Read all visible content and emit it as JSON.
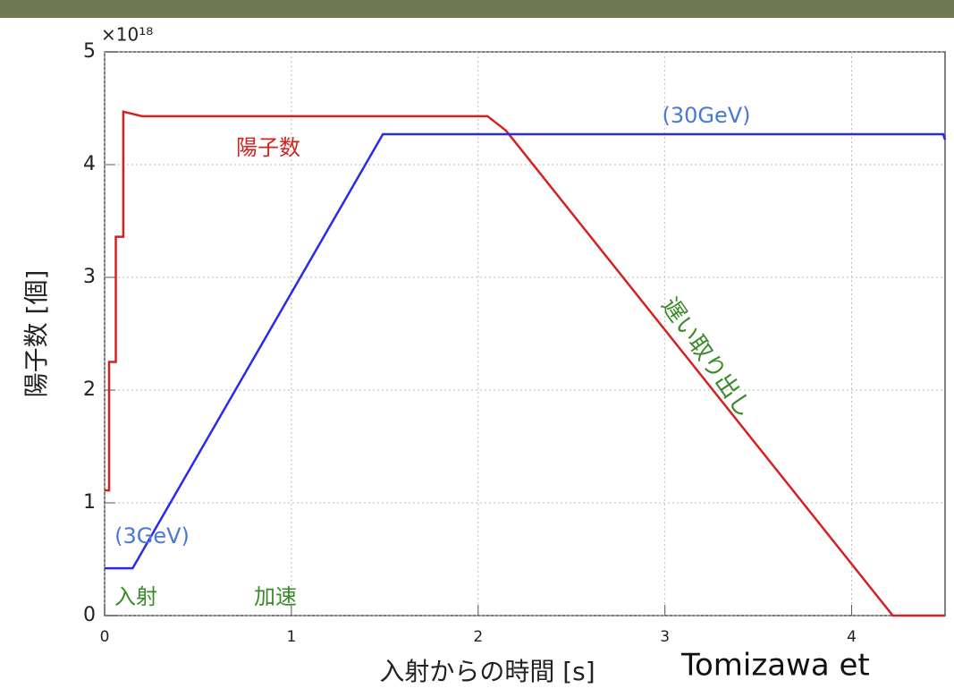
{
  "chart_data": {
    "type": "line",
    "x_label": "入射からの時間 [s]",
    "y_label": "陽子数 [個]",
    "y_multiplier": "×10¹⁸",
    "xlim": [
      0,
      4.5
    ],
    "xticks": [
      0,
      1,
      2,
      3,
      4
    ],
    "ylim": [
      0,
      5
    ],
    "yticks": [
      0,
      1,
      2,
      3,
      4,
      5
    ],
    "grid": true,
    "series": [
      {
        "name": "陽子数",
        "color": "#d42222",
        "x": [
          0,
          0.024,
          0.024,
          0.06,
          0.06,
          0.1,
          0.1,
          0.2,
          2.05,
          2.15,
          4.22,
          4.5
        ],
        "values": [
          1.11,
          1.11,
          2.25,
          2.25,
          3.36,
          3.36,
          4.47,
          4.43,
          4.43,
          4.3,
          0,
          0
        ]
      },
      {
        "color": "#2a2ae8",
        "x": [
          0,
          0.15,
          1.49,
          4.49,
          4.5
        ],
        "values": [
          0.42,
          0.42,
          4.27,
          4.27,
          4.22
        ]
      }
    ],
    "annotations": [
      {
        "text": "(30GeV)",
        "color": "#4a78d8"
      },
      {
        "text": "(3GeV)",
        "color": "#4a78d8"
      },
      {
        "text": "入射",
        "color": "#3a8a2a"
      },
      {
        "text": "加速",
        "color": "#3a8a2a"
      },
      {
        "text": "遅い取り出し",
        "color": "#3a8a2a"
      }
    ],
    "credit": "Tomizawa et"
  }
}
